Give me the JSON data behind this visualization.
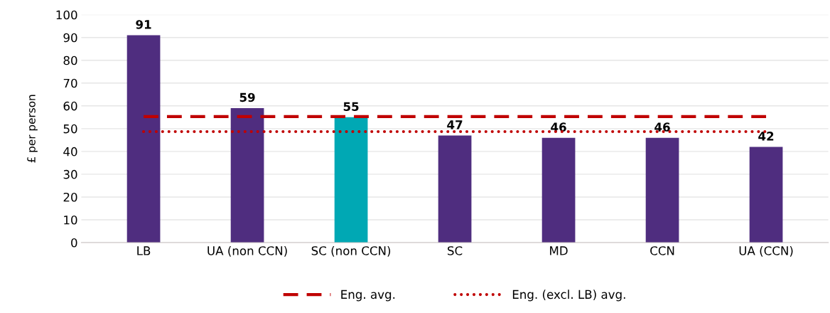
{
  "chart_data": {
    "type": "bar",
    "ylabel": "£ per person",
    "categories": [
      "LB",
      "UA (non CCN)",
      "SC (non CCN)",
      "SC",
      "MD",
      "CCN",
      "UA (CCN)"
    ],
    "series": [
      {
        "colors": [
          "#4f2d7f",
          "#4f2d7f",
          "#00a8b4",
          "#4f2d7f",
          "#4f2d7f",
          "#4f2d7f",
          "#4f2d7f"
        ],
        "values": [
          91,
          59,
          55,
          47,
          46,
          46,
          42
        ],
        "data_labels": true
      },
      {
        "type": "line",
        "name": "Eng. avg.",
        "color": "#c00000",
        "line_style": "dashed",
        "values": [
          55.3,
          55.3,
          55.3,
          55.3,
          55.3,
          55.3,
          55.3
        ]
      },
      {
        "type": "line",
        "name": "Eng. (excl. LB) avg.",
        "color": "#c00000",
        "line_style": "dotted",
        "values": [
          48.7,
          48.7,
          48.7,
          48.7,
          48.7,
          48.7,
          48.7
        ]
      }
    ],
    "ylim": [
      0,
      100
    ],
    "yticks": [
      0,
      10,
      20,
      30,
      40,
      50,
      60,
      70,
      80,
      90,
      100
    ],
    "grid": "y",
    "legend": "bottom",
    "marker": "none"
  }
}
